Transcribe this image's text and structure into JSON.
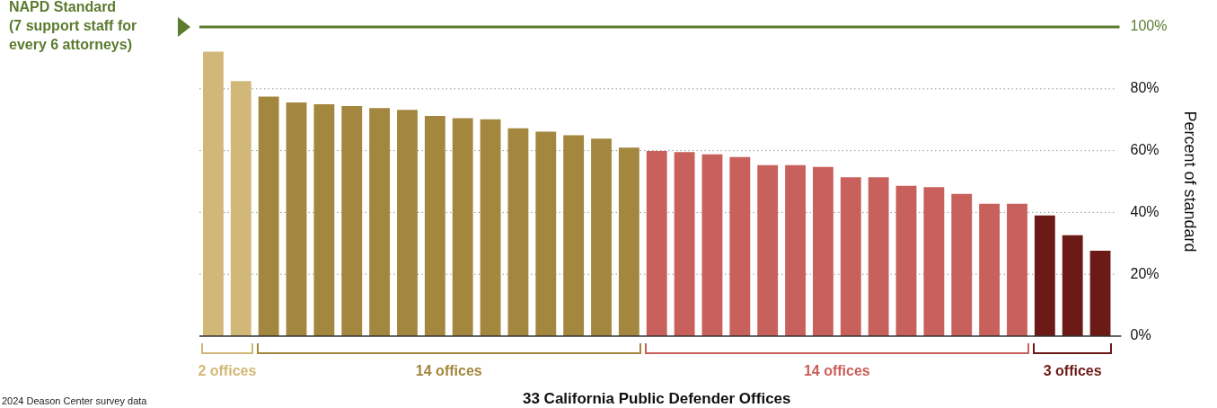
{
  "chart_data": {
    "type": "bar",
    "xlabel": "33 California Public Defender Offices",
    "ylabel": "Percent of standard",
    "categories": [
      null,
      null,
      null,
      null,
      null,
      null,
      null,
      null,
      null,
      null,
      null,
      null,
      null,
      null,
      null,
      null,
      null,
      null,
      null,
      null,
      null,
      null,
      null,
      null,
      null,
      null,
      null,
      null,
      null,
      null,
      null,
      null,
      null
    ],
    "values": [
      92,
      82.5,
      77.5,
      75.6,
      75,
      74.4,
      73.8,
      73.2,
      71.2,
      70.5,
      70.1,
      67.2,
      66.1,
      65,
      63.9,
      61,
      59.9,
      59.5,
      58.8,
      57.9,
      55.3,
      55.3,
      54.7,
      51.4,
      51.4,
      48.6,
      48.2,
      46,
      42.8,
      42.8,
      39,
      32.6,
      27.6
    ],
    "colors": [
      "#d2b878",
      "#d2b878",
      "#a3873e",
      "#a3873e",
      "#a3873e",
      "#a3873e",
      "#a3873e",
      "#a3873e",
      "#a3873e",
      "#a3873e",
      "#a3873e",
      "#a3873e",
      "#a3873e",
      "#a3873e",
      "#a3873e",
      "#a3873e",
      "#c8605c",
      "#c8605c",
      "#c8605c",
      "#c8605c",
      "#c8605c",
      "#c8605c",
      "#c8605c",
      "#c8605c",
      "#c8605c",
      "#c8605c",
      "#c8605c",
      "#c8605c",
      "#c8605c",
      "#c8605c",
      "#6b1a16",
      "#6b1a16",
      "#6b1a16"
    ],
    "ylim": [
      0,
      100
    ],
    "yticks": [
      {
        "value": 0,
        "label": "0%"
      },
      {
        "value": 20,
        "label": "20%"
      },
      {
        "value": 40,
        "label": "40%"
      },
      {
        "value": 60,
        "label": "60%"
      },
      {
        "value": 80,
        "label": "80%"
      },
      {
        "value": 100,
        "label": "100%"
      }
    ],
    "grid": "y",
    "legend": false,
    "ref_lines": [
      {
        "axis": "y",
        "value": 100,
        "label": "NAPD Standard\n(7 support staff for\nevery 6 attorneys)",
        "color": "#5b7b2e"
      }
    ],
    "annotations": [
      "2 offices",
      "14 offices",
      "14 offices",
      "3 offices",
      "2024 Deason Center survey data"
    ]
  }
}
